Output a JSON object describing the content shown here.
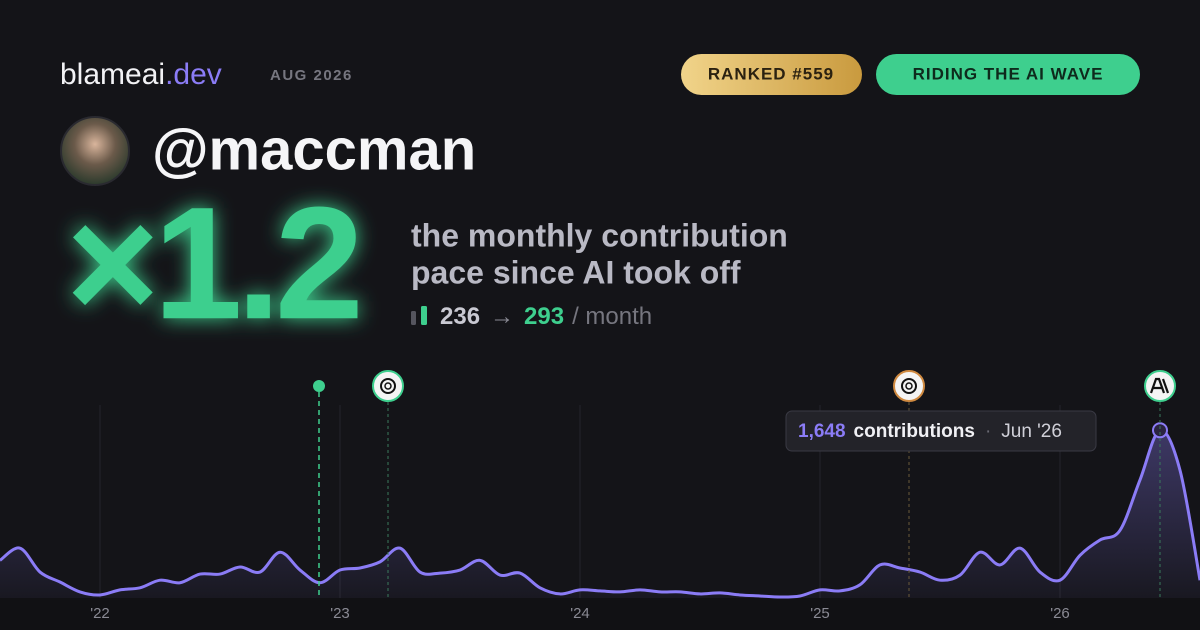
{
  "brand": {
    "name": "blameai",
    "tld": ".dev",
    "date": "AUG 2026"
  },
  "badges": [
    "RANKED #559",
    "RIDING THE AI WAVE"
  ],
  "handle": "@maccman",
  "multiplier": "×1.2",
  "description": [
    "the monthly contribution",
    "pace since AI took off"
  ],
  "stats": {
    "before": "236",
    "arrow": "→",
    "after": "293",
    "unit": "/ month"
  },
  "chart_data": {
    "type": "area",
    "categories": [
      null,
      null,
      null,
      null,
      null,
      "'22",
      null,
      null,
      null,
      null,
      null,
      null,
      null,
      null,
      null,
      null,
      null,
      "'23",
      null,
      null,
      null,
      null,
      null,
      null,
      null,
      null,
      null,
      null,
      null,
      "'24",
      null,
      null,
      null,
      null,
      null,
      null,
      null,
      null,
      null,
      null,
      null,
      "'25",
      null,
      null,
      null,
      null,
      null,
      null,
      null,
      null,
      null,
      null,
      null,
      "'26",
      null,
      null,
      null,
      null,
      null,
      null,
      null
    ],
    "series": [
      {
        "name": "contributions",
        "color": "#8b7cf6",
        "values": [
          370,
          490,
          255,
          157,
          60,
          30,
          80,
          100,
          175,
          150,
          235,
          235,
          305,
          255,
          450,
          275,
          150,
          275,
          295,
          355,
          490,
          255,
          245,
          275,
          370,
          225,
          245,
          100,
          40,
          80,
          70,
          60,
          80,
          60,
          60,
          40,
          50,
          30,
          20,
          10,
          20,
          80,
          70,
          130,
          325,
          295,
          255,
          175,
          225,
          450,
          325,
          490,
          255,
          175,
          420,
          570,
          665,
          1160,
          1648,
          1255,
          175
        ],
        "value_labels": [
          null,
          null,
          null,
          null,
          null,
          null,
          null,
          null,
          null,
          null,
          null,
          null,
          null,
          null,
          null,
          null,
          null,
          null,
          null,
          null,
          null,
          null,
          null,
          null,
          null,
          null,
          null,
          null,
          null,
          null,
          null,
          null,
          null,
          null,
          null,
          null,
          null,
          null,
          null,
          null,
          null,
          null,
          null,
          null,
          null,
          null,
          null,
          null,
          null,
          null,
          null,
          null,
          null,
          null,
          null,
          null,
          null,
          null,
          "1,648",
          null,
          null
        ]
      }
    ],
    "tooltip": {
      "label": "contributions",
      "date": "Jun '26"
    },
    "ylim": [
      0,
      1700
    ]
  }
}
